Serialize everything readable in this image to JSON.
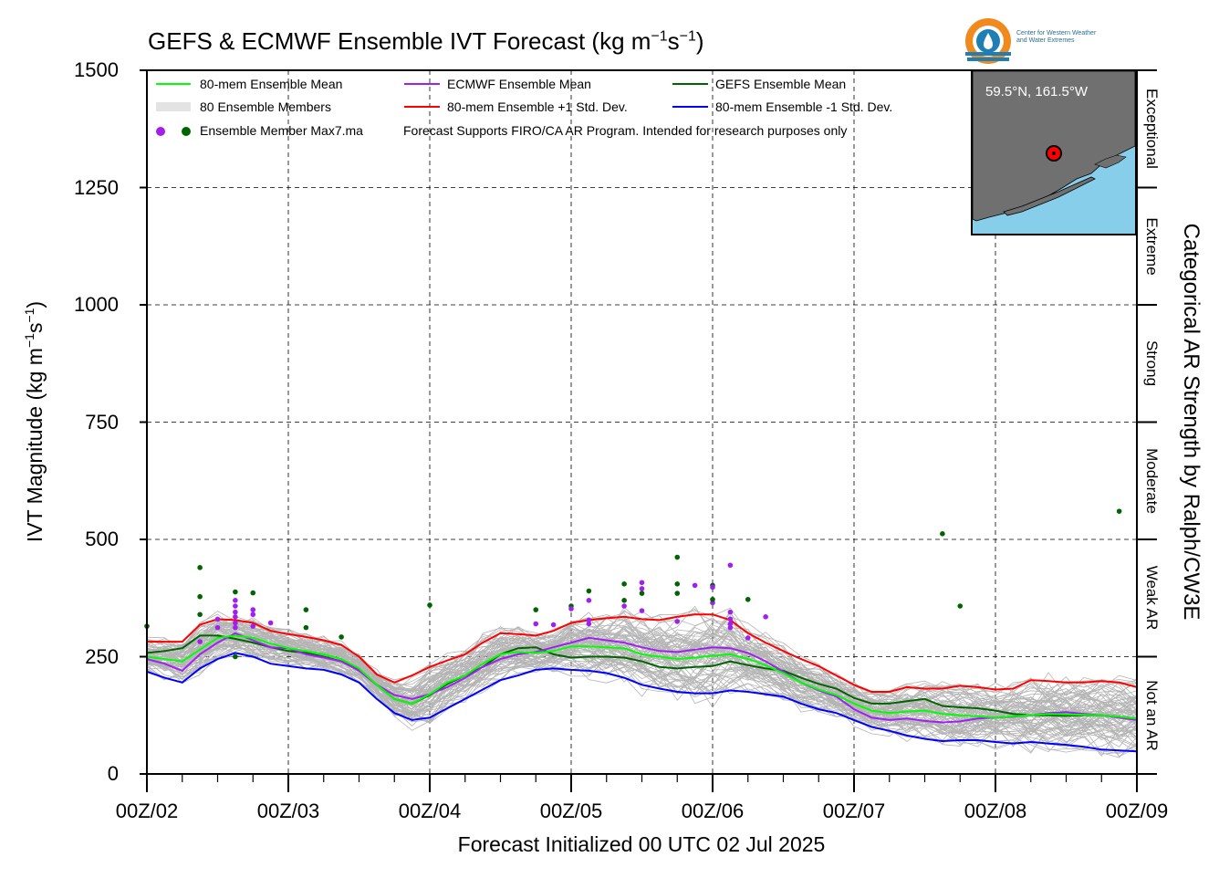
{
  "title": {
    "text": "GEFS & ECMWF Ensemble IVT Forecast (kg m",
    "sup1": "−1",
    "mid": "s",
    "sup2": "−1",
    "end": ")"
  },
  "ylabel": {
    "text": "IVT Magnitude (kg m",
    "sup1": "−1",
    "mid": "s",
    "sup2": "−1",
    "end": ")"
  },
  "xlabel": "Forecast Initialized 00 UTC 02 Jul 2025",
  "right_label": "Categorical AR Strength by Ralph/CW3E",
  "logo_text": [
    "Center for Western Weather",
    "and Water Extremes"
  ],
  "inset": {
    "label": "59.5°N, 161.5°W"
  },
  "legend": {
    "mean80": "80-mem Ensemble Mean",
    "members": "80 Ensemble Members",
    "max": "Ensemble Member Max7.ma",
    "ecmwf_mean": "ECMWF Ensemble Mean",
    "plus_sd": "80-mem Ensemble +1 Std. Dev.",
    "gefs_mean": "GEFS Ensemble Mean",
    "minus_sd": "80-mem Ensemble -1 Std. Dev.",
    "note": "Forecast Supports FIRO/CA AR Program. Intended for research purposes only"
  },
  "categories": [
    {
      "label": "Exceptional",
      "from": 1250,
      "to": 1500
    },
    {
      "label": "Extreme",
      "from": 1000,
      "to": 1250
    },
    {
      "label": "Strong",
      "from": 750,
      "to": 1000
    },
    {
      "label": "Moderate",
      "from": 500,
      "to": 750
    },
    {
      "label": "Weak AR",
      "from": 250,
      "to": 500
    },
    {
      "label": "Not an AR",
      "from": 0,
      "to": 250
    }
  ],
  "colors": {
    "mean80": "#00ff00",
    "ecmwf": "#a020f0",
    "gefs": "#006400",
    "plus_sd": "#ff0000",
    "minus_sd": "#0000ff",
    "members": "#b4b4b4",
    "ocean": "#87ceeb",
    "land": "#707070"
  },
  "chart_data": {
    "type": "line",
    "xlabel": "Forecast Initialized 00 UTC 02 Jul 2025",
    "ylabel": "IVT Magnitude (kg m-1s-1)",
    "xlim": [
      0,
      168
    ],
    "ylim": [
      0,
      1500
    ],
    "x_ticks": [
      {
        "hour": 0,
        "label": "00Z/02"
      },
      {
        "hour": 24,
        "label": "00Z/03"
      },
      {
        "hour": 48,
        "label": "00Z/04"
      },
      {
        "hour": 72,
        "label": "00Z/05"
      },
      {
        "hour": 96,
        "label": "00Z/06"
      },
      {
        "hour": 120,
        "label": "00Z/07"
      },
      {
        "hour": 144,
        "label": "00Z/08"
      },
      {
        "hour": 168,
        "label": "00Z/09"
      }
    ],
    "y_ticks": [
      0,
      250,
      500,
      750,
      1000,
      1250,
      1500
    ],
    "grid": true,
    "x": [
      0,
      3,
      6,
      9,
      12,
      15,
      18,
      21,
      24,
      27,
      30,
      33,
      36,
      39,
      42,
      45,
      48,
      51,
      54,
      57,
      60,
      63,
      66,
      69,
      72,
      75,
      78,
      81,
      84,
      87,
      90,
      93,
      96,
      99,
      102,
      105,
      108,
      111,
      114,
      117,
      120,
      123,
      126,
      129,
      132,
      135,
      138,
      141,
      144,
      147,
      150,
      153,
      156,
      159,
      162,
      165,
      168
    ],
    "series": [
      {
        "name": "80-mem Ensemble Mean",
        "color": "#00ff00",
        "values": [
          250,
          245,
          240,
          265,
          290,
          295,
          290,
          278,
          268,
          262,
          255,
          245,
          225,
          190,
          160,
          150,
          170,
          195,
          210,
          235,
          255,
          260,
          258,
          262,
          272,
          272,
          270,
          268,
          255,
          250,
          245,
          248,
          252,
          255,
          245,
          232,
          215,
          195,
          180,
          168,
          150,
          135,
          130,
          133,
          135,
          128,
          125,
          123,
          120,
          123,
          125,
          128,
          127,
          126,
          125,
          122,
          118
        ]
      },
      {
        "name": "ECMWF Ensemble Mean",
        "color": "#a020f0",
        "values": [
          245,
          235,
          220,
          255,
          280,
          300,
          285,
          270,
          268,
          255,
          248,
          240,
          220,
          190,
          168,
          160,
          170,
          185,
          205,
          228,
          245,
          255,
          260,
          270,
          280,
          290,
          285,
          280,
          270,
          262,
          260,
          265,
          270,
          268,
          258,
          240,
          218,
          195,
          178,
          165,
          138,
          120,
          115,
          118,
          113,
          110,
          112,
          118,
          120,
          122,
          125,
          130,
          132,
          128,
          125,
          120,
          115
        ]
      },
      {
        "name": "GEFS Ensemble Mean",
        "color": "#006400",
        "values": [
          258,
          262,
          268,
          295,
          295,
          288,
          280,
          270,
          262,
          258,
          250,
          240,
          222,
          190,
          160,
          150,
          168,
          192,
          210,
          228,
          255,
          268,
          270,
          255,
          248,
          250,
          250,
          248,
          240,
          228,
          225,
          228,
          230,
          240,
          232,
          225,
          220,
          205,
          192,
          182,
          162,
          150,
          150,
          155,
          160,
          145,
          142,
          140,
          135,
          128,
          125,
          125,
          124,
          125,
          125,
          122,
          118
        ]
      },
      {
        "name": "80-mem Ensemble +1 Std. Dev.",
        "color": "#ff0000",
        "values": [
          282,
          282,
          282,
          318,
          330,
          328,
          322,
          305,
          298,
          292,
          285,
          275,
          250,
          212,
          195,
          210,
          228,
          242,
          255,
          280,
          300,
          298,
          295,
          305,
          322,
          328,
          332,
          335,
          330,
          328,
          335,
          340,
          340,
          328,
          300,
          280,
          262,
          245,
          230,
          210,
          190,
          175,
          175,
          185,
          182,
          182,
          188,
          185,
          180,
          182,
          200,
          198,
          195,
          195,
          198,
          195,
          185
        ]
      },
      {
        "name": "80-mem Ensemble -1 Std. Dev.",
        "color": "#0000ff",
        "values": [
          218,
          205,
          195,
          225,
          245,
          258,
          250,
          235,
          230,
          225,
          222,
          212,
          195,
          160,
          130,
          115,
          120,
          140,
          160,
          180,
          200,
          210,
          222,
          225,
          222,
          220,
          215,
          205,
          190,
          182,
          175,
          172,
          172,
          178,
          175,
          170,
          165,
          150,
          138,
          130,
          115,
          100,
          92,
          82,
          75,
          70,
          72,
          72,
          68,
          65,
          68,
          65,
          62,
          58,
          52,
          50,
          48
        ]
      }
    ],
    "ensemble_members": 80,
    "max_markers": [
      {
        "model": "GEFS",
        "x": 0,
        "y": 315
      },
      {
        "model": "GEFS",
        "x": 9,
        "y": 440
      },
      {
        "model": "GEFS",
        "x": 9,
        "y": 378
      },
      {
        "model": "GEFS",
        "x": 9,
        "y": 340
      },
      {
        "model": "ECMWF",
        "x": 9,
        "y": 282
      },
      {
        "model": "ECMWF",
        "x": 12,
        "y": 330
      },
      {
        "model": "ECMWF",
        "x": 12,
        "y": 312
      },
      {
        "model": "GEFS",
        "x": 15,
        "y": 388
      },
      {
        "model": "ECMWF",
        "x": 15,
        "y": 370
      },
      {
        "model": "ECMWF",
        "x": 15,
        "y": 358
      },
      {
        "model": "ECMWF",
        "x": 15,
        "y": 345
      },
      {
        "model": "ECMWF",
        "x": 15,
        "y": 335
      },
      {
        "model": "ECMWF",
        "x": 15,
        "y": 322
      },
      {
        "model": "ECMWF",
        "x": 15,
        "y": 312
      },
      {
        "model": "GEFS",
        "x": 15,
        "y": 250
      },
      {
        "model": "GEFS",
        "x": 18,
        "y": 386
      },
      {
        "model": "ECMWF",
        "x": 18,
        "y": 350
      },
      {
        "model": "ECMWF",
        "x": 18,
        "y": 340
      },
      {
        "model": "ECMWF",
        "x": 18,
        "y": 315
      },
      {
        "model": "ECMWF",
        "x": 21,
        "y": 322
      },
      {
        "model": "GEFS",
        "x": 27,
        "y": 350
      },
      {
        "model": "GEFS",
        "x": 27,
        "y": 312
      },
      {
        "model": "GEFS",
        "x": 33,
        "y": 292
      },
      {
        "model": "GEFS",
        "x": 48,
        "y": 360
      },
      {
        "model": "GEFS",
        "x": 66,
        "y": 350
      },
      {
        "model": "ECMWF",
        "x": 66,
        "y": 320
      },
      {
        "model": "ECMWF",
        "x": 69,
        "y": 318
      },
      {
        "model": "GEFS",
        "x": 72,
        "y": 358
      },
      {
        "model": "ECMWF",
        "x": 72,
        "y": 352
      },
      {
        "model": "GEFS",
        "x": 75,
        "y": 390
      },
      {
        "model": "ECMWF",
        "x": 75,
        "y": 370
      },
      {
        "model": "ECMWF",
        "x": 75,
        "y": 328
      },
      {
        "model": "ECMWF",
        "x": 75,
        "y": 320
      },
      {
        "model": "GEFS",
        "x": 81,
        "y": 405
      },
      {
        "model": "GEFS",
        "x": 81,
        "y": 370
      },
      {
        "model": "ECMWF",
        "x": 81,
        "y": 358
      },
      {
        "model": "ECMWF",
        "x": 84,
        "y": 408
      },
      {
        "model": "ECMWF",
        "x": 84,
        "y": 395
      },
      {
        "model": "GEFS",
        "x": 84,
        "y": 385
      },
      {
        "model": "ECMWF",
        "x": 84,
        "y": 348
      },
      {
        "model": "GEFS",
        "x": 90,
        "y": 462
      },
      {
        "model": "GEFS",
        "x": 90,
        "y": 405
      },
      {
        "model": "GEFS",
        "x": 90,
        "y": 385
      },
      {
        "model": "ECMWF",
        "x": 90,
        "y": 325
      },
      {
        "model": "ECMWF",
        "x": 93,
        "y": 402
      },
      {
        "model": "GEFS",
        "x": 96,
        "y": 402
      },
      {
        "model": "ECMWF",
        "x": 96,
        "y": 398
      },
      {
        "model": "ECMWF",
        "x": 96,
        "y": 365
      },
      {
        "model": "GEFS",
        "x": 96,
        "y": 372
      },
      {
        "model": "ECMWF",
        "x": 99,
        "y": 445
      },
      {
        "model": "ECMWF",
        "x": 99,
        "y": 345
      },
      {
        "model": "ECMWF",
        "x": 99,
        "y": 330
      },
      {
        "model": "ECMWF",
        "x": 99,
        "y": 320
      },
      {
        "model": "ECMWF",
        "x": 99,
        "y": 312
      },
      {
        "model": "GEFS",
        "x": 102,
        "y": 372
      },
      {
        "model": "ECMWF",
        "x": 102,
        "y": 290
      },
      {
        "model": "ECMWF",
        "x": 105,
        "y": 335
      },
      {
        "model": "GEFS",
        "x": 135,
        "y": 512
      },
      {
        "model": "GEFS",
        "x": 138,
        "y": 358
      },
      {
        "model": "GEFS",
        "x": 165,
        "y": 560
      }
    ]
  }
}
